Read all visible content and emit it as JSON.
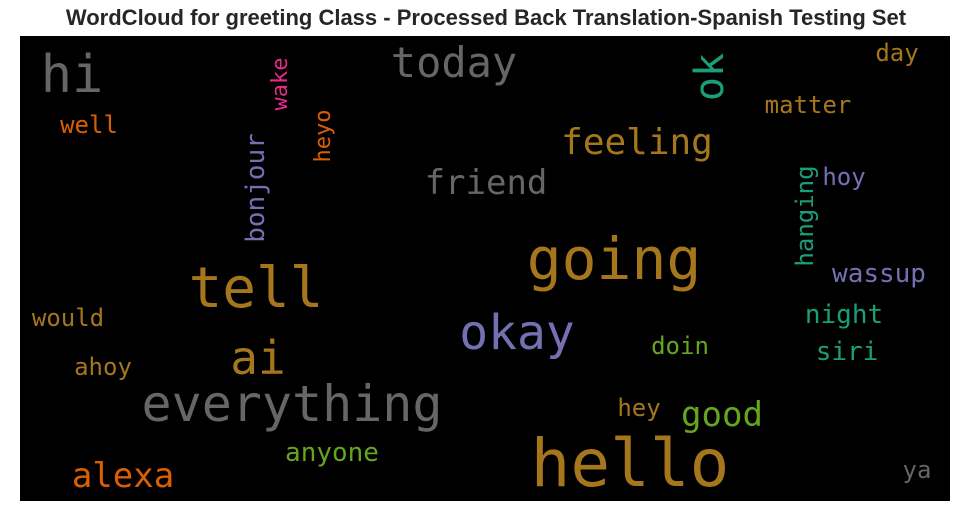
{
  "title": "WordCloud for greeting Class - Processed Back Translation-Spanish Testing Set",
  "chart_data": {
    "type": "wordcloud",
    "title": "WordCloud for greeting Class - Processed Back Translation-Spanish Testing Set",
    "background": "#000000",
    "words": [
      {
        "text": "hello",
        "weight": 1.0,
        "color": "#a6761d"
      },
      {
        "text": "going",
        "weight": 0.9,
        "color": "#a6761d"
      },
      {
        "text": "tell",
        "weight": 0.8,
        "color": "#a6761d"
      },
      {
        "text": "everything",
        "weight": 0.75,
        "color": "#666666"
      },
      {
        "text": "okay",
        "weight": 0.7,
        "color": "#7570b3"
      },
      {
        "text": "hi",
        "weight": 0.7,
        "color": "#666666"
      },
      {
        "text": "ai",
        "weight": 0.65,
        "color": "#a6761d"
      },
      {
        "text": "today",
        "weight": 0.6,
        "color": "#666666"
      },
      {
        "text": "ok",
        "weight": 0.55,
        "color": "#1b9e77"
      },
      {
        "text": "feeling",
        "weight": 0.5,
        "color": "#a6761d"
      },
      {
        "text": "friend",
        "weight": 0.5,
        "color": "#666666"
      },
      {
        "text": "alexa",
        "weight": 0.5,
        "color": "#d95f02"
      },
      {
        "text": "good",
        "weight": 0.5,
        "color": "#66a61e"
      },
      {
        "text": "bonjour",
        "weight": 0.4,
        "color": "#7570b3"
      },
      {
        "text": "hanging",
        "weight": 0.35,
        "color": "#1b9e77"
      },
      {
        "text": "wassup",
        "weight": 0.35,
        "color": "#7570b3"
      },
      {
        "text": "night",
        "weight": 0.35,
        "color": "#1b9e77"
      },
      {
        "text": "siri",
        "weight": 0.35,
        "color": "#1b9e77"
      },
      {
        "text": "anyone",
        "weight": 0.32,
        "color": "#66a61e"
      },
      {
        "text": "matter",
        "weight": 0.32,
        "color": "#a6761d"
      },
      {
        "text": "would",
        "weight": 0.32,
        "color": "#a6761d"
      },
      {
        "text": "hoy",
        "weight": 0.32,
        "color": "#7570b3"
      },
      {
        "text": "hey",
        "weight": 0.32,
        "color": "#a6761d"
      },
      {
        "text": "doin",
        "weight": 0.3,
        "color": "#66a61e"
      },
      {
        "text": "day",
        "weight": 0.3,
        "color": "#a6761d"
      },
      {
        "text": "ya",
        "weight": 0.3,
        "color": "#666666"
      },
      {
        "text": "well",
        "weight": 0.3,
        "color": "#d95f02"
      },
      {
        "text": "ahoy",
        "weight": 0.3,
        "color": "#a6761d"
      },
      {
        "text": "heyo",
        "weight": 0.3,
        "color": "#d95f02"
      },
      {
        "text": "wake",
        "weight": 0.3,
        "color": "#e7298a"
      }
    ]
  }
}
